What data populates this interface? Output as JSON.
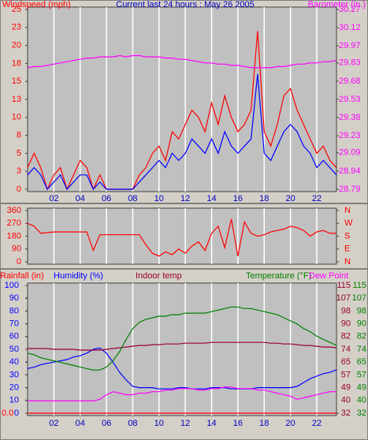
{
  "chart_data": [
    {
      "type": "line",
      "title": "Current last 24 hours : May 26 2005",
      "y_label": "Windspeed (mph)",
      "y2_label": "Barometer (in.)",
      "x": [
        0,
        0.5,
        1,
        1.5,
        2,
        2.5,
        3,
        3.5,
        4,
        4.5,
        5,
        5.5,
        6,
        6.5,
        7,
        7.5,
        8,
        8.5,
        9,
        9.5,
        10,
        10.5,
        11,
        11.5,
        12,
        12.5,
        13,
        13.5,
        14,
        14.5,
        15,
        15.5,
        16,
        16.5,
        17,
        17.5,
        18,
        18.5,
        19,
        19.5,
        20,
        20.5,
        21,
        21.5,
        22,
        22.5,
        23,
        23.5
      ],
      "xlim": [
        0,
        23.5
      ],
      "xticks": [
        {
          "value": 2,
          "label": "02"
        },
        {
          "value": 4,
          "label": "04"
        },
        {
          "value": 6,
          "label": "06"
        },
        {
          "value": 8,
          "label": "08"
        },
        10,
        12,
        14,
        16,
        18,
        20,
        22
      ],
      "grid": true,
      "ylim": [
        0,
        25
      ],
      "yticks": [
        0,
        {
          "value": 2.5,
          "label": "3"
        },
        5,
        {
          "value": 7.5,
          "label": "8"
        },
        10,
        {
          "value": 12.5,
          "label": "13"
        },
        15,
        {
          "value": 17.5,
          "label": "18"
        },
        20,
        {
          "value": 22.5,
          "label": "23"
        },
        25
      ],
      "y2lim": [
        28.79,
        30.27
      ],
      "y2ticks": [
        28.79,
        28.94,
        29.09,
        29.23,
        29.38,
        29.53,
        29.68,
        29.83,
        29.97,
        30.12,
        30.27
      ],
      "series": [
        {
          "color": "#ff0000",
          "axis": "y",
          "values": [
            3,
            5,
            3,
            0,
            2,
            3,
            0,
            2,
            4,
            3,
            0,
            2,
            0,
            0,
            0,
            0,
            0,
            2,
            3,
            5,
            6,
            4,
            8,
            7,
            9,
            11,
            10,
            8,
            12,
            9,
            13,
            10,
            8,
            9,
            11,
            22,
            8,
            6,
            9,
            13,
            14,
            11,
            9,
            7,
            5,
            6,
            4,
            3
          ]
        },
        {
          "color": "#0000ff",
          "axis": "y",
          "values": [
            2,
            3,
            2,
            0,
            1,
            2,
            0,
            1,
            2,
            2,
            0,
            1,
            0,
            0,
            0,
            0,
            0,
            1,
            2,
            3,
            4,
            3,
            5,
            4,
            5,
            7,
            6,
            5,
            7,
            5,
            8,
            6,
            5,
            6,
            7,
            16,
            5,
            4,
            6,
            8,
            9,
            8,
            6,
            5,
            3,
            4,
            3,
            2
          ]
        },
        {
          "color": "#ff00ff",
          "axis": "y2",
          "values": [
            29.79,
            29.8,
            29.8,
            29.81,
            29.82,
            29.83,
            29.84,
            29.85,
            29.86,
            29.87,
            29.87,
            29.88,
            29.88,
            29.88,
            29.89,
            29.88,
            29.89,
            29.89,
            29.88,
            29.88,
            29.88,
            29.87,
            29.87,
            29.86,
            29.86,
            29.85,
            29.84,
            29.83,
            29.83,
            29.82,
            29.82,
            29.81,
            29.81,
            29.8,
            29.79,
            29.79,
            29.79,
            29.79,
            29.8,
            29.8,
            29.81,
            29.82,
            29.82,
            29.83,
            29.83,
            29.84,
            29.84,
            29.85
          ]
        }
      ]
    },
    {
      "type": "line",
      "x": [
        0,
        0.5,
        1,
        1.5,
        2,
        2.5,
        3,
        3.5,
        4,
        4.5,
        5,
        5.5,
        6,
        6.5,
        7,
        7.5,
        8,
        8.5,
        9,
        9.5,
        10,
        10.5,
        11,
        11.5,
        12,
        12.5,
        13,
        13.5,
        14,
        14.5,
        15,
        15.5,
        16,
        16.5,
        17,
        17.5,
        18,
        18.5,
        19,
        19.5,
        20,
        20.5,
        21,
        21.5,
        22,
        22.5,
        23,
        23.5
      ],
      "xlim": [
        0,
        23.5
      ],
      "xticks": [
        2,
        4,
        6,
        8,
        10,
        12,
        14,
        16,
        18,
        20,
        22
      ],
      "grid": true,
      "ylim": [
        0,
        360
      ],
      "yticks": [
        0,
        90,
        180,
        270,
        360
      ],
      "y2lim": [
        0,
        360
      ],
      "y2ticks": [
        {
          "value": 0,
          "label": "N"
        },
        {
          "value": 90,
          "label": "E"
        },
        {
          "value": 180,
          "label": "S"
        },
        {
          "value": 270,
          "label": "W"
        },
        {
          "value": 360,
          "label": "N"
        }
      ],
      "series": [
        {
          "color": "#ff0000",
          "axis": "y",
          "values": [
            270,
            250,
            200,
            205,
            210,
            210,
            210,
            210,
            210,
            210,
            80,
            190,
            190,
            190,
            190,
            190,
            190,
            190,
            120,
            60,
            40,
            70,
            50,
            90,
            60,
            110,
            140,
            80,
            200,
            250,
            100,
            300,
            40,
            280,
            200,
            180,
            190,
            210,
            220,
            230,
            250,
            240,
            220,
            180,
            210,
            220,
            200,
            200
          ]
        }
      ]
    },
    {
      "type": "line",
      "x": [
        0,
        0.5,
        1,
        1.5,
        2,
        2.5,
        3,
        3.5,
        4,
        4.5,
        5,
        5.5,
        6,
        6.5,
        7,
        7.5,
        8,
        8.5,
        9,
        9.5,
        10,
        10.5,
        11,
        11.5,
        12,
        12.5,
        13,
        13.5,
        14,
        14.5,
        15,
        15.5,
        16,
        16.5,
        17,
        17.5,
        18,
        18.5,
        19,
        19.5,
        20,
        20.5,
        21,
        21.5,
        22,
        22.5,
        23,
        23.5
      ],
      "xlim": [
        0,
        23.5
      ],
      "xticks": [
        {
          "value": 2,
          "label": "02"
        },
        {
          "value": 4,
          "label": "04"
        },
        {
          "value": 6,
          "label": "06"
        },
        {
          "value": 8,
          "label": "08"
        },
        10,
        12,
        14,
        16,
        18,
        20,
        22
      ],
      "grid": true,
      "ylim": [
        0,
        100
      ],
      "yticks": [
        0,
        10,
        20,
        30,
        40,
        50,
        60,
        70,
        80,
        90,
        100
      ],
      "y2lim": [
        32,
        115
      ],
      "y2ticks": [
        32,
        {
          "value": 40.3,
          "label": "40"
        },
        {
          "value": 48.6,
          "label": "49"
        },
        {
          "value": 56.9,
          "label": "57"
        },
        {
          "value": 65.2,
          "label": "65"
        },
        {
          "value": 73.5,
          "label": "74"
        },
        {
          "value": 81.8,
          "label": "82"
        },
        {
          "value": 90.1,
          "label": "90"
        },
        {
          "value": 98.4,
          "label": "98"
        },
        {
          "value": 106.7,
          "label": "107"
        },
        115
      ],
      "y3lim": [
        0,
        1
      ],
      "y3ticks": [
        {
          "value": 0,
          "label": "0.0"
        }
      ],
      "series": [
        {
          "name": "Rainfall (in)",
          "color": "#ff0000",
          "axis": "y3",
          "values": [
            0,
            0,
            0,
            0,
            0,
            0,
            0,
            0,
            0,
            0,
            0,
            0,
            0,
            0,
            0,
            0,
            0,
            0,
            0,
            0,
            0,
            0,
            0,
            0,
            0,
            0,
            0,
            0,
            0,
            0,
            0,
            0,
            0,
            0,
            0,
            0,
            0,
            0,
            0,
            0,
            0,
            0,
            0,
            0,
            0,
            0,
            0,
            0
          ]
        },
        {
          "name": "Humidity (%)",
          "color": "#0000ff",
          "axis": "y",
          "values": [
            35,
            36,
            38,
            39,
            40,
            41,
            42,
            44,
            45,
            47,
            50,
            51,
            47,
            40,
            32,
            26,
            21,
            20,
            20,
            20,
            19,
            19,
            19,
            20,
            20,
            19,
            19,
            19,
            20,
            20,
            20,
            19,
            19,
            19,
            19,
            20,
            20,
            20,
            20,
            20,
            20,
            21,
            24,
            27,
            29,
            31,
            32,
            34
          ]
        },
        {
          "name": "Indoor temp",
          "color": "#990033",
          "axis": "y2",
          "values": [
            74,
            74,
            74,
            74,
            73.5,
            73.5,
            73.5,
            73.5,
            73,
            73,
            73,
            73,
            73.5,
            74,
            74.5,
            75,
            75.5,
            76,
            76,
            76.5,
            76.5,
            77,
            77,
            77,
            77.5,
            77.5,
            77.5,
            77.5,
            78,
            78,
            78,
            78,
            78,
            78,
            78,
            78,
            78,
            77.5,
            77.5,
            77,
            77,
            76.5,
            76,
            76,
            75.5,
            75,
            75,
            74.5
          ]
        },
        {
          "name": "Temperature (°F)",
          "color": "#008000",
          "axis": "y2",
          "values": [
            71,
            70,
            68,
            67,
            66,
            65,
            64,
            63,
            62,
            61,
            60,
            60,
            62,
            66,
            72,
            80,
            87,
            91,
            93,
            94,
            95,
            95,
            96,
            96,
            97,
            97,
            97,
            97,
            98,
            99,
            100,
            101,
            101,
            100,
            100,
            99,
            98,
            97,
            96,
            94,
            92,
            90,
            87,
            85,
            82,
            80,
            78,
            76
          ]
        },
        {
          "name": "Dew Point",
          "color": "#ff00ff",
          "axis": "y2",
          "values": [
            40,
            40,
            40,
            40,
            40,
            40,
            40,
            40,
            40,
            40,
            40,
            41,
            44,
            46,
            45,
            44,
            44,
            45,
            45,
            46,
            46,
            47,
            47,
            48,
            48,
            48,
            47,
            47,
            48,
            48,
            49,
            49,
            48,
            48,
            48,
            47,
            47,
            46,
            45,
            44,
            43,
            41,
            42,
            43,
            44,
            45,
            46,
            46
          ]
        }
      ]
    }
  ]
}
